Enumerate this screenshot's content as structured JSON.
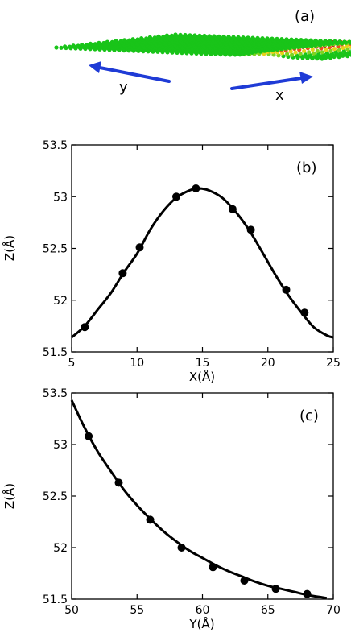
{
  "panel_a": {
    "label": "(a)",
    "x_arrow_label": "x",
    "y_arrow_label": "y",
    "arrow_color": "#1f3bd6",
    "atom_colors": [
      "#19c419",
      "#7ed321",
      "#e8d21a",
      "#e8501a",
      "#cc1111"
    ]
  },
  "chart_data": [
    {
      "type": "scatter",
      "panel": "(b)",
      "title": "",
      "xlabel": "X(Å)",
      "ylabel": "Z(Å)",
      "xlim": [
        5,
        25
      ],
      "ylim": [
        51.5,
        53.5
      ],
      "xticks": [
        5,
        10,
        15,
        20,
        25
      ],
      "yticks": [
        51.5,
        52,
        52.5,
        53,
        53.5
      ],
      "xtick_labels": [
        "5",
        "10",
        "15",
        "20",
        "25"
      ],
      "ytick_labels": [
        "51.5",
        "52",
        "52.5",
        "53",
        "53.5"
      ],
      "grid": false,
      "legend": "none",
      "points": {
        "x": [
          6.0,
          8.9,
          10.2,
          13.0,
          14.5,
          17.3,
          18.7,
          21.4,
          22.8
        ],
        "y": [
          51.74,
          52.26,
          52.51,
          53.0,
          53.08,
          52.88,
          52.68,
          52.1,
          51.88
        ]
      },
      "fit_curve": {
        "x": [
          5,
          6,
          7,
          8,
          9,
          10,
          11,
          12,
          13,
          14,
          14.7,
          15.5,
          16.5,
          17.5,
          18.5,
          19.5,
          20.5,
          21.5,
          22.5,
          23.5,
          24.5,
          25
        ],
        "y": [
          51.64,
          51.75,
          51.91,
          52.07,
          52.27,
          52.45,
          52.68,
          52.86,
          52.99,
          53.06,
          53.08,
          53.06,
          52.99,
          52.86,
          52.69,
          52.48,
          52.26,
          52.06,
          51.89,
          51.74,
          51.66,
          51.64
        ]
      }
    },
    {
      "type": "scatter",
      "panel": "(c)",
      "title": "",
      "xlabel": "Y(Å)",
      "ylabel": "Z(Å)",
      "xlim": [
        50,
        70
      ],
      "ylim": [
        51.5,
        53.5
      ],
      "xticks": [
        50,
        55,
        60,
        65,
        70
      ],
      "yticks": [
        51.5,
        52,
        52.5,
        53,
        53.5
      ],
      "xtick_labels": [
        "50",
        "55",
        "60",
        "65",
        "70"
      ],
      "ytick_labels": [
        "51.5",
        "52",
        "52.5",
        "53",
        "53.5"
      ],
      "grid": false,
      "legend": "none",
      "points": {
        "x": [
          51.3,
          53.6,
          56.0,
          58.4,
          60.8,
          63.2,
          65.6,
          68.0
        ],
        "y": [
          53.08,
          52.63,
          52.27,
          52.0,
          51.81,
          51.68,
          51.6,
          51.55
        ]
      },
      "fit_curve": {
        "x": [
          50,
          51,
          52,
          53,
          54,
          55,
          56,
          57,
          58,
          59,
          60,
          61,
          62,
          63,
          64,
          65,
          66,
          67,
          68,
          69,
          69.5
        ],
        "y": [
          53.43,
          53.16,
          52.93,
          52.74,
          52.56,
          52.41,
          52.28,
          52.16,
          52.06,
          51.97,
          51.9,
          51.83,
          51.77,
          51.72,
          51.67,
          51.63,
          51.6,
          51.57,
          51.54,
          51.52,
          51.51
        ]
      }
    }
  ]
}
